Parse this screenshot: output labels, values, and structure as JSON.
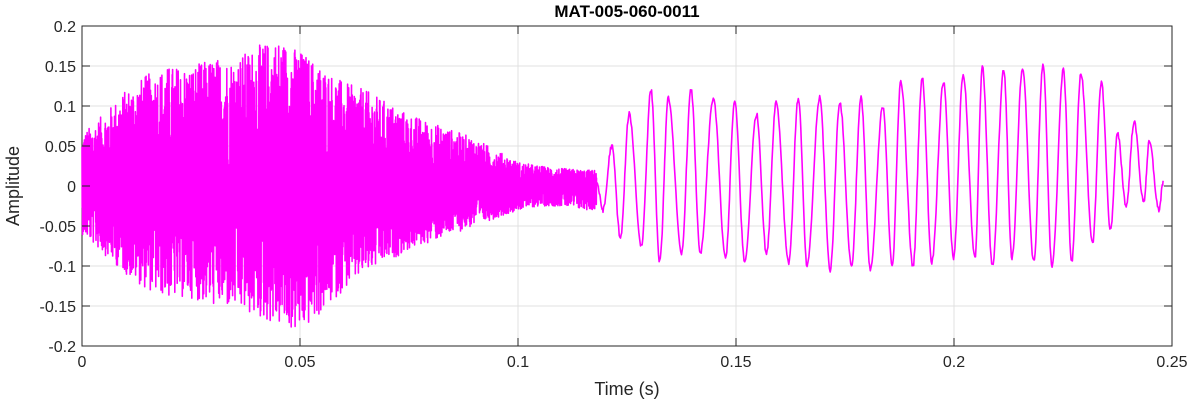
{
  "chart_data": {
    "type": "line",
    "title": "MAT-005-060-0011",
    "xlabel": "Time (s)",
    "ylabel": "Amplitude",
    "xlim": [
      0,
      0.25
    ],
    "ylim": [
      -0.2,
      0.2
    ],
    "xticks": [
      0,
      0.05,
      0.1,
      0.15,
      0.2,
      0.25
    ],
    "xtick_labels": [
      "0",
      "0.05",
      "0.1",
      "0.15",
      "0.2",
      "0.25"
    ],
    "yticks": [
      -0.2,
      -0.15,
      -0.1,
      -0.05,
      0,
      0.05,
      0.1,
      0.15,
      0.2
    ],
    "ytick_labels": [
      "-0.2",
      "-0.15",
      "-0.1",
      "-0.05",
      "0",
      "0.05",
      "0.1",
      "0.15",
      "0.2"
    ],
    "grid": true,
    "line_color": "#ff00ff",
    "series": [
      {
        "x": [
          0,
          0.005,
          0.01,
          0.015,
          0.02,
          0.025,
          0.03,
          0.035,
          0.04,
          0.045,
          0.05,
          0.055,
          0.06,
          0.065,
          0.07,
          0.075,
          0.08,
          0.085,
          0.09,
          0.095,
          0.1,
          0.105,
          0.11,
          0.115,
          0.118,
          0.1195,
          0.1215,
          0.1235,
          0.1255,
          0.1283,
          0.1305,
          0.1325,
          0.1345,
          0.1375,
          0.1397,
          0.1418,
          0.1448,
          0.1476,
          0.1497,
          0.152,
          0.1547,
          0.157,
          0.1592,
          0.1621,
          0.1643,
          0.1663,
          0.1692,
          0.1716,
          0.1738,
          0.1765,
          0.1787,
          0.1808,
          0.1837,
          0.1858,
          0.1878,
          0.1906,
          0.1927,
          0.1949,
          0.1976,
          0.1999,
          0.2021,
          0.2048,
          0.2065,
          0.2088,
          0.2114,
          0.2133,
          0.2157,
          0.2183,
          0.2204,
          0.2225,
          0.2251,
          0.227,
          0.2291,
          0.2318,
          0.2338,
          0.2359,
          0.2375,
          0.2395,
          0.2413,
          0.2435,
          0.2448,
          0.247,
          0.248
        ],
        "y": [
          0.05,
          0.07,
          0.085,
          0.1,
          0.12,
          0.13,
          0.14,
          0.15,
          0.165,
          0.18,
          0.17,
          0.15,
          0.13,
          0.11,
          0.1,
          0.09,
          0.08,
          0.07,
          0.06,
          0.05,
          0.04,
          0.03,
          0.025,
          0.018,
          0.005,
          -0.03,
          0.05,
          -0.065,
          0.09,
          -0.075,
          0.12,
          -0.095,
          0.11,
          -0.085,
          0.12,
          -0.085,
          0.11,
          -0.09,
          0.105,
          -0.095,
          0.09,
          -0.085,
          0.105,
          -0.095,
          0.11,
          -0.1,
          0.11,
          -0.105,
          0.105,
          -0.1,
          0.11,
          -0.105,
          0.1,
          -0.1,
          0.13,
          -0.1,
          0.135,
          -0.095,
          0.13,
          -0.09,
          0.14,
          -0.09,
          0.148,
          -0.1,
          0.145,
          -0.09,
          0.148,
          -0.095,
          0.15,
          -0.1,
          0.145,
          -0.095,
          0.14,
          -0.07,
          0.13,
          -0.055,
          0.065,
          -0.025,
          0.08,
          -0.02,
          0.055,
          -0.03,
          0.005
        ],
        "envelope_top": [
          0.065,
          0.09,
          0.12,
          0.14,
          0.15,
          0.15,
          0.16,
          0.16,
          0.175,
          0.185,
          0.17,
          0.15,
          0.13,
          0.12,
          0.105,
          0.09,
          0.08,
          0.07,
          0.06,
          0.045,
          0.03,
          0.025,
          0.022,
          0.02,
          0.02
        ],
        "envelope_bottom": [
          -0.06,
          -0.085,
          -0.11,
          -0.13,
          -0.14,
          -0.14,
          -0.15,
          -0.155,
          -0.165,
          -0.175,
          -0.185,
          -0.16,
          -0.13,
          -0.11,
          -0.095,
          -0.08,
          -0.07,
          -0.06,
          -0.05,
          -0.04,
          -0.03,
          -0.025,
          -0.025,
          -0.03,
          -0.03
        ]
      }
    ]
  }
}
